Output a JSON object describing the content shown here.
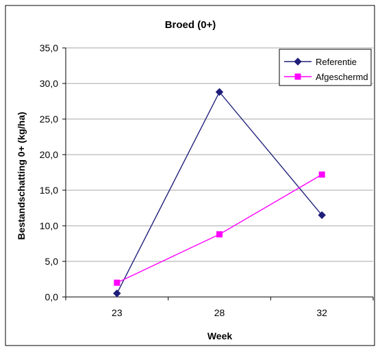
{
  "chart_data": {
    "type": "line",
    "title": "Broed (0+)",
    "xlabel": "Week",
    "ylabel": "Bestandschatting 0+ (kg/ha)",
    "categories": [
      "23",
      "28",
      "32"
    ],
    "ylim": [
      0,
      35
    ],
    "yticks": [
      "0,0",
      "5,0",
      "10,0",
      "15,0",
      "20,0",
      "25,0",
      "30,0",
      "35,0"
    ],
    "grid": true,
    "legend_position": "top-right",
    "series": [
      {
        "name": "Referentie",
        "values": [
          0.5,
          28.8,
          11.5
        ],
        "color": "#1f1f7a",
        "marker": "diamond"
      },
      {
        "name": "Afgeschermd",
        "values": [
          2.0,
          8.8,
          17.2
        ],
        "color": "#ff00ff",
        "marker": "square"
      }
    ]
  }
}
